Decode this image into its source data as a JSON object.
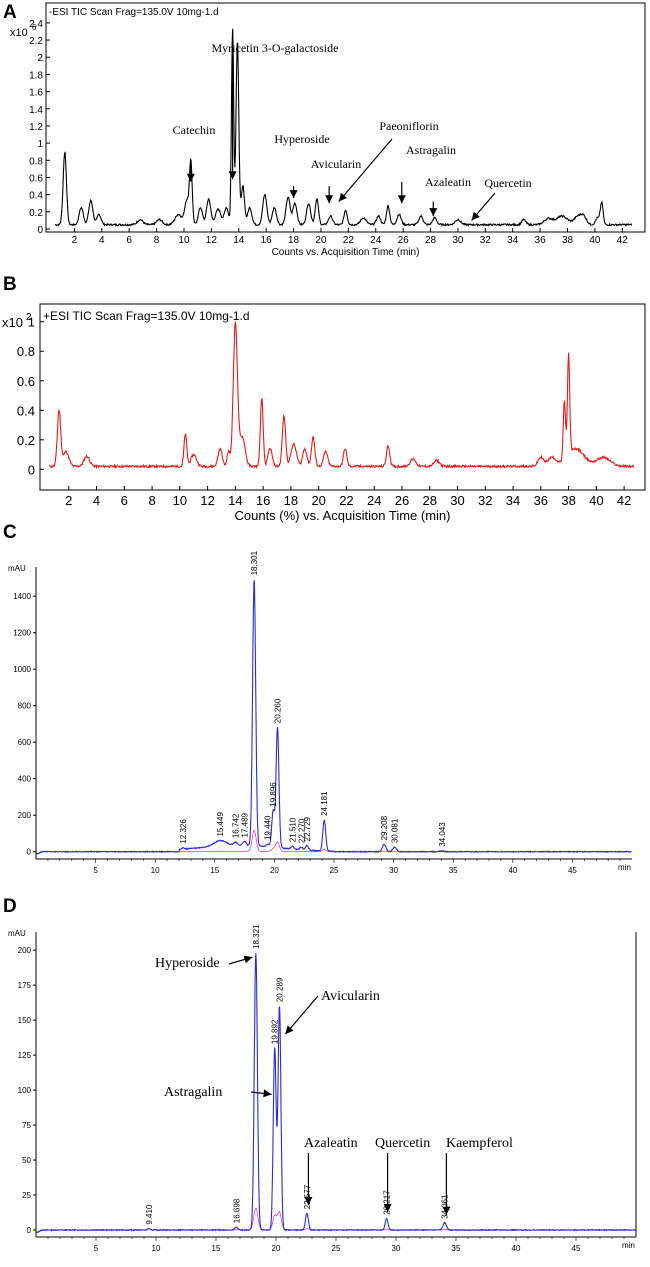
{
  "panels": [
    {
      "letter": "A",
      "header": "-ESI TIC Scan Frag=135.0V 10mg-1.d",
      "exponent_base": "x10",
      "exponent_power": "6",
      "xlabel": "Counts vs. Acquisition Time (min)"
    },
    {
      "letter": "B",
      "header": "+ESI TIC Scan Frag=135.0V 10mg-1.d",
      "exponent_base": "x10",
      "exponent_power": "2",
      "xlabel": "Counts (%) vs. Acquisition Time (min)"
    },
    {
      "letter": "C",
      "unit": "mAU",
      "xunit": "min"
    },
    {
      "letter": "D",
      "unit": "mAU",
      "xunit": "min"
    }
  ],
  "chart_data": [
    {
      "type": "line",
      "xlim": [
        0,
        43
      ],
      "ylim": [
        0,
        2.55
      ],
      "xticks": [
        2,
        4,
        6,
        8,
        10,
        12,
        14,
        16,
        18,
        20,
        22,
        24,
        26,
        28,
        30,
        32,
        34,
        36,
        38,
        40,
        42
      ],
      "yticks": [
        0,
        0.2,
        0.4,
        0.6,
        0.8,
        1,
        1.2,
        1.4,
        1.6,
        1.8,
        2,
        2.2,
        2.4
      ],
      "ytick_labels": [
        "0",
        "0.2",
        "0.4",
        "0.6",
        "0.8",
        "1",
        "1.2",
        "1.4",
        "1.6",
        "1.8",
        "2",
        "2.2",
        "2.4"
      ],
      "line_color": "#000000",
      "baseline": 0.05,
      "series": [
        {
          "peaks": [
            [
              1.3,
              0.85,
              0.12
            ],
            [
              2.5,
              0.2,
              0.15
            ],
            [
              3.2,
              0.28,
              0.15
            ],
            [
              3.8,
              0.12,
              0.15
            ],
            [
              6.8,
              0.06,
              0.2
            ],
            [
              8.2,
              0.06,
              0.2
            ],
            [
              9.6,
              0.12,
              0.25
            ],
            [
              10.2,
              0.28,
              0.15
            ],
            [
              10.5,
              0.73,
              0.1
            ],
            [
              11.2,
              0.2,
              0.15
            ],
            [
              11.8,
              0.3,
              0.15
            ],
            [
              12.5,
              0.18,
              0.2
            ],
            [
              13.1,
              0.2,
              0.15
            ],
            [
              13.55,
              2.3,
              0.08
            ],
            [
              13.9,
              2.15,
              0.1
            ],
            [
              14.3,
              0.45,
              0.12
            ],
            [
              14.8,
              0.2,
              0.15
            ],
            [
              15.9,
              0.35,
              0.15
            ],
            [
              16.6,
              0.2,
              0.15
            ],
            [
              17.6,
              0.32,
              0.15
            ],
            [
              18.1,
              0.25,
              0.15
            ],
            [
              19.1,
              0.25,
              0.15
            ],
            [
              19.7,
              0.3,
              0.12
            ],
            [
              20.7,
              0.1,
              0.15
            ],
            [
              21.8,
              0.17,
              0.12
            ],
            [
              23.1,
              0.08,
              0.2
            ],
            [
              24.2,
              0.1,
              0.15
            ],
            [
              24.9,
              0.22,
              0.12
            ],
            [
              25.7,
              0.12,
              0.15
            ],
            [
              27.3,
              0.1,
              0.15
            ],
            [
              28.3,
              0.08,
              0.15
            ],
            [
              30.0,
              0.06,
              0.2
            ],
            [
              34.8,
              0.06,
              0.15
            ],
            [
              36.6,
              0.07,
              0.3
            ],
            [
              37.6,
              0.1,
              0.4
            ],
            [
              38.8,
              0.1,
              0.3
            ],
            [
              39.2,
              0.07,
              0.2
            ],
            [
              40.2,
              0.08,
              0.15
            ],
            [
              40.5,
              0.25,
              0.1
            ]
          ]
        }
      ],
      "annotations": [
        {
          "text": "Myricetin 3-O-galactoside",
          "arrow_x": 13.55,
          "arrow_y1": 2.2,
          "arrow_y2": 0.58
        },
        {
          "text": "Catechin",
          "arrow_x": 10.5,
          "arrow_y1": 0.78,
          "arrow_y2": 0.55
        },
        {
          "text": "Hyperoside",
          "arrow_x": 18.0,
          "arrow_y1": 0.5,
          "arrow_y2": 0.36
        },
        {
          "text": "Avicularin",
          "arrow_x": 20.6,
          "arrow_y1": 0.5,
          "arrow_y2": 0.3
        },
        {
          "text": "Paeoniflorin",
          "arrow_x": 21.3,
          "arrow_y1": 0.78,
          "arrow_y2": 0.32
        },
        {
          "text": "Astragalin",
          "arrow_x": 25.9,
          "arrow_y1": 0.55,
          "arrow_y2": 0.3
        },
        {
          "text": "Azaleatin",
          "arrow_x": 28.2,
          "arrow_y1": 0.32,
          "arrow_y2": 0.15
        },
        {
          "text": "Quercetin",
          "arrow_x": 31.0,
          "arrow_y1": 0.2,
          "arrow_y2": 0.1
        }
      ]
    },
    {
      "type": "line",
      "xlim": [
        0,
        43
      ],
      "ylim": [
        -0.14,
        1.12
      ],
      "xticks": [
        2,
        4,
        6,
        8,
        10,
        12,
        14,
        16,
        18,
        20,
        22,
        24,
        26,
        28,
        30,
        32,
        34,
        36,
        38,
        40,
        42
      ],
      "yticks": [
        0,
        0.2,
        0.4,
        0.6,
        0.8,
        1
      ],
      "ytick_labels": [
        "0",
        "0.2",
        "0.4",
        "0.6",
        "0.8",
        "1"
      ],
      "line_color": "#e31a1c",
      "baseline": 0.02,
      "series": [
        {
          "peaks": [
            [
              1.3,
              0.38,
              0.12
            ],
            [
              1.8,
              0.1,
              0.2
            ],
            [
              3.3,
              0.07,
              0.2
            ],
            [
              10.4,
              0.22,
              0.1
            ],
            [
              11.0,
              0.08,
              0.2
            ],
            [
              12.9,
              0.12,
              0.15
            ],
            [
              13.5,
              0.1,
              0.1
            ],
            [
              14.0,
              0.97,
              0.15
            ],
            [
              14.5,
              0.2,
              0.2
            ],
            [
              15.9,
              0.46,
              0.1
            ],
            [
              16.5,
              0.12,
              0.15
            ],
            [
              17.5,
              0.34,
              0.12
            ],
            [
              18.2,
              0.15,
              0.2
            ],
            [
              19.0,
              0.12,
              0.15
            ],
            [
              19.6,
              0.2,
              0.12
            ],
            [
              20.5,
              0.1,
              0.15
            ],
            [
              21.9,
              0.12,
              0.12
            ],
            [
              25.0,
              0.14,
              0.12
            ],
            [
              26.8,
              0.05,
              0.2
            ],
            [
              28.5,
              0.04,
              0.2
            ],
            [
              36.0,
              0.06,
              0.2
            ],
            [
              36.8,
              0.06,
              0.3
            ],
            [
              37.7,
              0.4,
              0.08
            ],
            [
              38.0,
              0.68,
              0.08
            ],
            [
              38.5,
              0.12,
              0.6
            ],
            [
              40.5,
              0.06,
              0.5
            ]
          ]
        }
      ]
    },
    {
      "type": "line",
      "xlim": [
        0,
        50
      ],
      "ylim": [
        -40,
        1560
      ],
      "xticks": [
        5,
        10,
        15,
        20,
        25,
        30,
        35,
        40,
        45
      ],
      "yticks": [
        0,
        200,
        400,
        600,
        800,
        1000,
        1200,
        1400
      ],
      "ytick_labels": [
        "0",
        "200",
        "400",
        "600",
        "800",
        "1000",
        "1200",
        "1400"
      ],
      "line_color": "#2c2ccc",
      "peak_labels": [
        "12.326",
        "15.449",
        "16.742",
        "17.489",
        "18.301",
        "19.440",
        "19.896",
        "20.260",
        "21.510",
        "22.270",
        "22.729",
        "24.181",
        "29.208",
        "30.081",
        "34.043"
      ],
      "series": [
        {
          "peaks": [
            [
              12.326,
              8,
              0.1
            ],
            [
              15.449,
              30,
              0.5
            ],
            [
              16.742,
              18,
              0.15
            ],
            [
              17.489,
              22,
              0.15
            ],
            [
              18.301,
              1460,
              0.13
            ],
            [
              19.44,
              15,
              0.12
            ],
            [
              19.896,
              200,
              0.12
            ],
            [
              20.26,
              660,
              0.12
            ],
            [
              21.51,
              15,
              0.12
            ],
            [
              22.27,
              14,
              0.12
            ],
            [
              22.729,
              25,
              0.12
            ],
            [
              24.181,
              170,
              0.12
            ],
            [
              29.208,
              40,
              0.15
            ],
            [
              30.081,
              25,
              0.15
            ],
            [
              34.043,
              5,
              0.15
            ]
          ]
        }
      ]
    },
    {
      "type": "line",
      "xlim": [
        0,
        50
      ],
      "ylim": [
        -5,
        213
      ],
      "xticks": [
        5,
        10,
        15,
        20,
        25,
        30,
        35,
        40,
        45
      ],
      "yticks": [
        0,
        25,
        50,
        75,
        100,
        125,
        150,
        175,
        200
      ],
      "ytick_labels": [
        "0",
        "25",
        "50",
        "75",
        "100",
        "125",
        "150",
        "175",
        "200"
      ],
      "line_color": "#2c2ccc",
      "peak_labels": [
        "9.410",
        "16.698",
        "18.321",
        "19.892",
        "20.289",
        "22.577",
        "29.217",
        "34.061"
      ],
      "series": [
        {
          "peaks": [
            [
              9.41,
              1,
              0.1
            ],
            [
              16.698,
              2,
              0.12
            ],
            [
              18.321,
              198,
              0.13
            ],
            [
              19.892,
              130,
              0.12
            ],
            [
              20.289,
              160,
              0.12
            ],
            [
              22.577,
              12,
              0.12
            ],
            [
              29.217,
              8,
              0.12
            ],
            [
              34.061,
              5,
              0.15
            ]
          ]
        }
      ],
      "annotations": [
        {
          "text": "Hyperoside",
          "arrow_to": [
            18.2,
            195
          ]
        },
        {
          "text": "Avicularin",
          "arrow_to": [
            20.45,
            140
          ]
        },
        {
          "text": "Astragalin",
          "arrow_to": [
            19.8,
            97
          ]
        },
        {
          "text": "Azaleatin",
          "arrow_to": [
            22.7,
            15
          ]
        },
        {
          "text": "Quercetin",
          "arrow_to": [
            29.3,
            10
          ]
        },
        {
          "text": "Kaempferol",
          "arrow_to": [
            34.2,
            8
          ]
        }
      ]
    }
  ]
}
